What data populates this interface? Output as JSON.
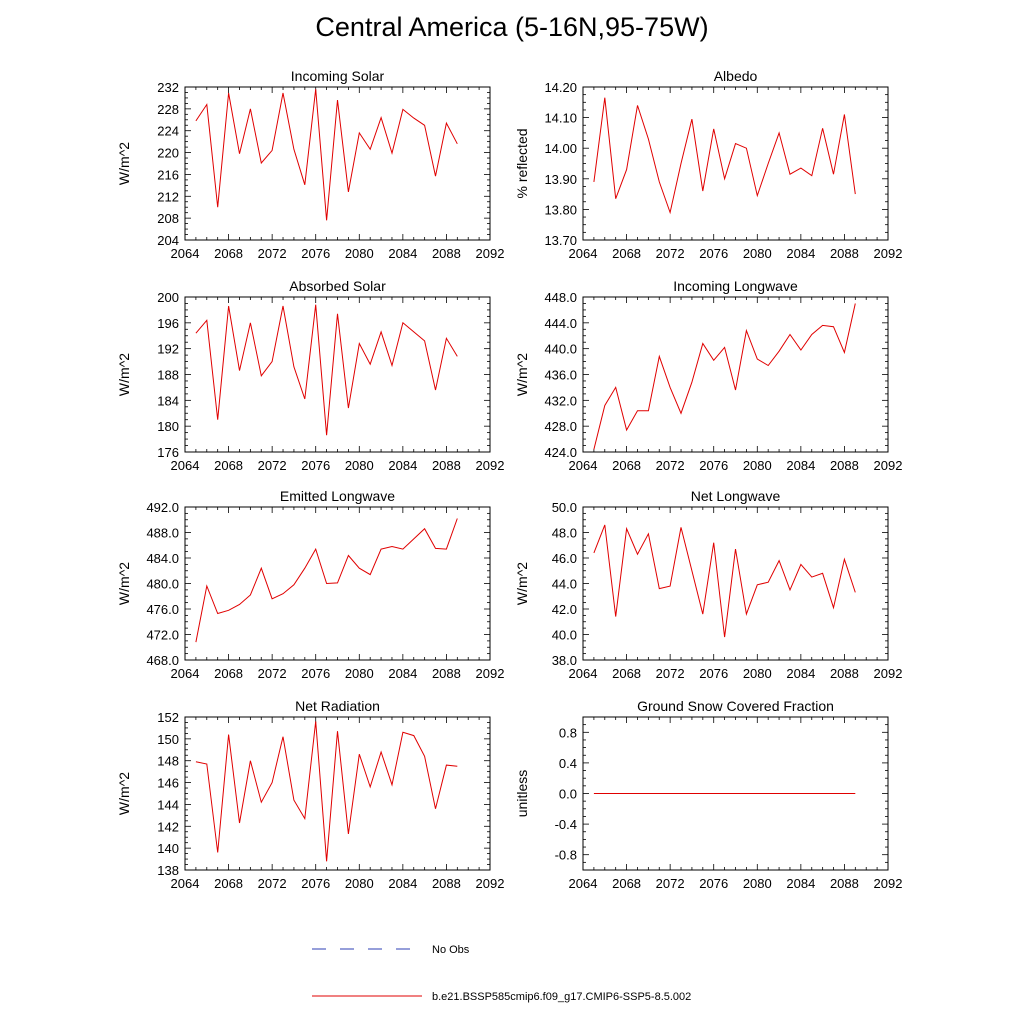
{
  "title": "Central America (5-16N,95-75W)",
  "colors": {
    "model": "#e00000",
    "obs": "#2c3fb5",
    "axis": "#000000"
  },
  "legend": {
    "entries": [
      {
        "label": "No Obs",
        "style": "dashed",
        "color": "#2c3fb5"
      },
      {
        "label": "b.e21.BSSP585cmip6.f09_g17.CMIP6-SSP5-8.5.002",
        "style": "solid",
        "color": "#e00000"
      }
    ]
  },
  "chart_data": [
    {
      "type": "line",
      "title": "Incoming Solar",
      "ylabel": "W/m^2",
      "xlim": [
        2064,
        2092
      ],
      "ylim": [
        204,
        232
      ],
      "x_ticks": [
        2064,
        2068,
        2072,
        2076,
        2080,
        2084,
        2088,
        2092
      ],
      "x_tick_labels": [
        "2064",
        "2068",
        "2072",
        "2076",
        "2080",
        "2084",
        "2088",
        "2092"
      ],
      "y_ticks": [
        204,
        208,
        212,
        216,
        220,
        224,
        228,
        232
      ],
      "y_tick_labels": [
        "204",
        "208",
        "212",
        "216",
        "220",
        "224",
        "228",
        "232"
      ],
      "series": [
        {
          "x": [
            2065,
            2066,
            2067,
            2068,
            2069,
            2070,
            2071,
            2072,
            2073,
            2074,
            2075,
            2076,
            2077,
            2078,
            2079,
            2080,
            2081,
            2082,
            2083,
            2084,
            2085,
            2086,
            2087,
            2088,
            2089
          ],
          "values": [
            225.8,
            228.8,
            210.0,
            230.9,
            219.8,
            228.0,
            218.1,
            220.4,
            230.9,
            220.6,
            214.1,
            231.6,
            207.6,
            229.6,
            212.8,
            223.6,
            220.6,
            226.4,
            219.9,
            227.9,
            226.3,
            225.0,
            215.7,
            225.4,
            221.6
          ]
        }
      ]
    },
    {
      "type": "line",
      "title": "Albedo",
      "ylabel": "% reflected",
      "xlim": [
        2064,
        2092
      ],
      "ylim": [
        13.7,
        14.2
      ],
      "x_ticks": [
        2064,
        2068,
        2072,
        2076,
        2080,
        2084,
        2088,
        2092
      ],
      "x_tick_labels": [
        "2064",
        "2068",
        "2072",
        "2076",
        "2080",
        "2084",
        "2088",
        "2092"
      ],
      "y_ticks": [
        13.7,
        13.8,
        13.9,
        14.0,
        14.1,
        14.2
      ],
      "y_tick_labels": [
        "13.70",
        "13.80",
        "13.90",
        "14.00",
        "14.10",
        "14.20"
      ],
      "series": [
        {
          "x": [
            2065,
            2066,
            2067,
            2068,
            2069,
            2070,
            2071,
            2072,
            2073,
            2074,
            2075,
            2076,
            2077,
            2078,
            2079,
            2080,
            2081,
            2082,
            2083,
            2084,
            2085,
            2086,
            2087,
            2088,
            2089
          ],
          "values": [
            13.89,
            14.165,
            13.835,
            13.93,
            14.14,
            14.03,
            13.89,
            13.79,
            13.95,
            14.095,
            13.86,
            14.063,
            13.9,
            14.015,
            14.0,
            13.845,
            13.95,
            14.05,
            13.915,
            13.935,
            13.91,
            14.065,
            13.915,
            14.11,
            13.85
          ]
        }
      ]
    },
    {
      "type": "line",
      "title": "Absorbed Solar",
      "ylabel": "W/m^2",
      "xlim": [
        2064,
        2092
      ],
      "ylim": [
        176,
        200
      ],
      "x_ticks": [
        2064,
        2068,
        2072,
        2076,
        2080,
        2084,
        2088,
        2092
      ],
      "x_tick_labels": [
        "2064",
        "2068",
        "2072",
        "2076",
        "2080",
        "2084",
        "2088",
        "2092"
      ],
      "y_ticks": [
        176,
        180,
        184,
        188,
        192,
        196,
        200
      ],
      "y_tick_labels": [
        "176",
        "180",
        "184",
        "188",
        "192",
        "196",
        "200"
      ],
      "series": [
        {
          "x": [
            2065,
            2066,
            2067,
            2068,
            2069,
            2070,
            2071,
            2072,
            2073,
            2074,
            2075,
            2076,
            2077,
            2078,
            2079,
            2080,
            2081,
            2082,
            2083,
            2084,
            2085,
            2086,
            2087,
            2088,
            2089
          ],
          "values": [
            194.4,
            196.4,
            181.0,
            198.6,
            188.6,
            196.0,
            187.8,
            190.0,
            198.6,
            189.2,
            184.2,
            198.8,
            178.6,
            197.4,
            182.8,
            192.8,
            189.6,
            194.6,
            189.4,
            196.0,
            194.6,
            193.2,
            185.6,
            193.6,
            190.8
          ]
        }
      ]
    },
    {
      "type": "line",
      "title": "Incoming Longwave",
      "ylabel": "W/m^2",
      "xlim": [
        2064,
        2092
      ],
      "ylim": [
        424,
        448
      ],
      "x_ticks": [
        2064,
        2068,
        2072,
        2076,
        2080,
        2084,
        2088,
        2092
      ],
      "x_tick_labels": [
        "2064",
        "2068",
        "2072",
        "2076",
        "2080",
        "2084",
        "2088",
        "2092"
      ],
      "y_ticks": [
        424,
        428,
        432,
        436,
        440,
        444,
        448
      ],
      "y_tick_labels": [
        "424.0",
        "428.0",
        "432.0",
        "436.0",
        "440.0",
        "444.0",
        "448.0"
      ],
      "series": [
        {
          "x": [
            2065,
            2066,
            2067,
            2068,
            2069,
            2070,
            2071,
            2072,
            2073,
            2074,
            2075,
            2076,
            2077,
            2078,
            2079,
            2080,
            2081,
            2082,
            2083,
            2084,
            2085,
            2086,
            2087,
            2088,
            2089
          ],
          "values": [
            424.4,
            431.2,
            434.0,
            427.4,
            430.4,
            430.4,
            438.8,
            434.0,
            430.0,
            434.8,
            440.8,
            438.2,
            440.2,
            433.6,
            442.8,
            438.4,
            437.4,
            439.6,
            442.2,
            439.8,
            442.2,
            443.6,
            443.4,
            439.4,
            447.0
          ]
        }
      ]
    },
    {
      "type": "line",
      "title": "Emitted Longwave",
      "ylabel": "W/m^2",
      "xlim": [
        2064,
        2092
      ],
      "ylim": [
        468,
        492
      ],
      "x_ticks": [
        2064,
        2068,
        2072,
        2076,
        2080,
        2084,
        2088,
        2092
      ],
      "x_tick_labels": [
        "2064",
        "2068",
        "2072",
        "2076",
        "2080",
        "2084",
        "2088",
        "2092"
      ],
      "y_ticks": [
        468,
        472,
        476,
        480,
        484,
        488,
        492
      ],
      "y_tick_labels": [
        "468.0",
        "472.0",
        "476.0",
        "480.0",
        "484.0",
        "488.0",
        "492.0"
      ],
      "series": [
        {
          "x": [
            2065,
            2066,
            2067,
            2068,
            2069,
            2070,
            2071,
            2072,
            2073,
            2074,
            2075,
            2076,
            2077,
            2078,
            2079,
            2080,
            2081,
            2082,
            2083,
            2084,
            2085,
            2086,
            2087,
            2088,
            2089
          ],
          "values": [
            470.8,
            479.6,
            475.3,
            475.8,
            476.7,
            478.2,
            482.4,
            477.6,
            478.4,
            479.8,
            482.4,
            485.4,
            480.0,
            480.1,
            484.4,
            482.4,
            481.4,
            485.4,
            485.8,
            485.4,
            487.0,
            488.6,
            485.5,
            485.4,
            490.2
          ]
        }
      ]
    },
    {
      "type": "line",
      "title": "Net Longwave",
      "ylabel": "W/m^2",
      "xlim": [
        2064,
        2092
      ],
      "ylim": [
        38,
        50
      ],
      "x_ticks": [
        2064,
        2068,
        2072,
        2076,
        2080,
        2084,
        2088,
        2092
      ],
      "x_tick_labels": [
        "2064",
        "2068",
        "2072",
        "2076",
        "2080",
        "2084",
        "2088",
        "2092"
      ],
      "y_ticks": [
        38,
        40,
        42,
        44,
        46,
        48,
        50
      ],
      "y_tick_labels": [
        "38.0",
        "40.0",
        "42.0",
        "44.0",
        "46.0",
        "48.0",
        "50.0"
      ],
      "series": [
        {
          "x": [
            2065,
            2066,
            2067,
            2068,
            2069,
            2070,
            2071,
            2072,
            2073,
            2074,
            2075,
            2076,
            2077,
            2078,
            2079,
            2080,
            2081,
            2082,
            2083,
            2084,
            2085,
            2086,
            2087,
            2088,
            2089
          ],
          "values": [
            46.4,
            48.6,
            41.4,
            48.3,
            46.3,
            47.9,
            43.6,
            43.8,
            48.4,
            45.0,
            41.6,
            47.2,
            39.8,
            46.7,
            41.6,
            43.9,
            44.1,
            45.8,
            43.5,
            45.5,
            44.5,
            44.8,
            42.1,
            45.9,
            43.3
          ]
        }
      ]
    },
    {
      "type": "line",
      "title": "Net Radiation",
      "ylabel": "W/m^2",
      "xlim": [
        2064,
        2092
      ],
      "ylim": [
        138,
        152
      ],
      "x_ticks": [
        2064,
        2068,
        2072,
        2076,
        2080,
        2084,
        2088,
        2092
      ],
      "x_tick_labels": [
        "2064",
        "2068",
        "2072",
        "2076",
        "2080",
        "2084",
        "2088",
        "2092"
      ],
      "y_ticks": [
        138,
        140,
        142,
        144,
        146,
        148,
        150,
        152
      ],
      "y_tick_labels": [
        "138",
        "140",
        "142",
        "144",
        "146",
        "148",
        "150",
        "152"
      ],
      "series": [
        {
          "x": [
            2065,
            2066,
            2067,
            2068,
            2069,
            2070,
            2071,
            2072,
            2073,
            2074,
            2075,
            2076,
            2077,
            2078,
            2079,
            2080,
            2081,
            2082,
            2083,
            2084,
            2085,
            2086,
            2087,
            2088,
            2089
          ],
          "values": [
            147.9,
            147.7,
            139.6,
            150.4,
            142.3,
            148.0,
            144.2,
            146.0,
            150.2,
            144.4,
            142.7,
            151.6,
            138.8,
            150.7,
            141.3,
            148.6,
            145.6,
            148.8,
            145.8,
            150.6,
            150.3,
            148.4,
            143.6,
            147.6,
            147.5
          ]
        }
      ]
    },
    {
      "type": "line",
      "title": "Ground Snow Covered Fraction",
      "ylabel": "unitless",
      "xlim": [
        2064,
        2092
      ],
      "ylim": [
        -1.0,
        1.0
      ],
      "x_ticks": [
        2064,
        2068,
        2072,
        2076,
        2080,
        2084,
        2088,
        2092
      ],
      "x_tick_labels": [
        "2064",
        "2068",
        "2072",
        "2076",
        "2080",
        "2084",
        "2088",
        "2092"
      ],
      "y_ticks": [
        -0.8,
        -0.4,
        0.0,
        0.4,
        0.8
      ],
      "y_tick_labels": [
        "-0.8",
        "-0.4",
        "0.0",
        "0.4",
        "0.8"
      ],
      "series": [
        {
          "x": [
            2065,
            2066,
            2067,
            2068,
            2069,
            2070,
            2071,
            2072,
            2073,
            2074,
            2075,
            2076,
            2077,
            2078,
            2079,
            2080,
            2081,
            2082,
            2083,
            2084,
            2085,
            2086,
            2087,
            2088,
            2089
          ],
          "values": [
            0,
            0,
            0,
            0,
            0,
            0,
            0,
            0,
            0,
            0,
            0,
            0,
            0,
            0,
            0,
            0,
            0,
            0,
            0,
            0,
            0,
            0,
            0,
            0,
            0
          ]
        }
      ]
    }
  ]
}
